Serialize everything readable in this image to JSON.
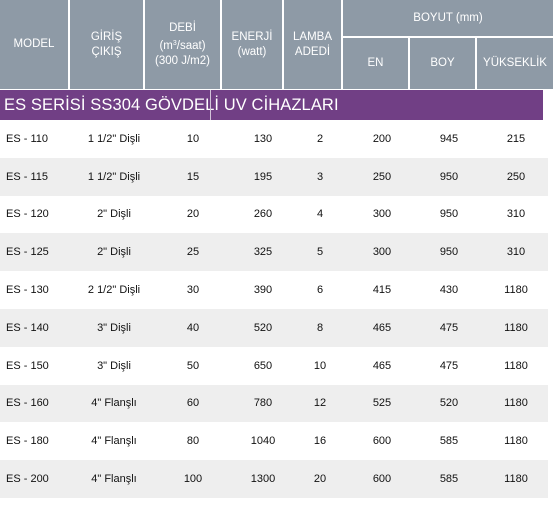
{
  "header": {
    "model": "MODEL",
    "giris_line1": "GİRİŞ",
    "giris_line2": "ÇIKIŞ",
    "debi_line1": "DEBİ",
    "debi_line2_pre": "(m",
    "debi_line2_sup": "3",
    "debi_line2_post": "/saat)",
    "debi_line3": "(300 J/m2)",
    "enerji_line1": "ENERJİ",
    "enerji_line2": "(watt)",
    "lamba_line1": "LAMBA",
    "lamba_line2": "ADEDİ",
    "boyut": "BOYUT (mm)",
    "en": "EN",
    "boy": "BOY",
    "yukseklik": "YÜKSEKLİK"
  },
  "section_title": "ES SERİSİ SS304 GÖVDELİ UV CİHAZLARI",
  "rows": [
    {
      "model": "ES - 110",
      "giris": "1 1/2\" Dişli",
      "debi": "10",
      "enerji": "130",
      "lamba": "2",
      "en": "200",
      "boy": "945",
      "yukseklik": "215"
    },
    {
      "model": "ES - 115",
      "giris": "1 1/2\" Dişli",
      "debi": "15",
      "enerji": "195",
      "lamba": "3",
      "en": "250",
      "boy": "950",
      "yukseklik": "250"
    },
    {
      "model": "ES - 120",
      "giris": "2\" Dişli",
      "debi": "20",
      "enerji": "260",
      "lamba": "4",
      "en": "300",
      "boy": "950",
      "yukseklik": "310"
    },
    {
      "model": "ES - 125",
      "giris": "2\" Dişli",
      "debi": "25",
      "enerji": "325",
      "lamba": "5",
      "en": "300",
      "boy": "950",
      "yukseklik": "310"
    },
    {
      "model": "ES - 130",
      "giris": "2 1/2\" Dişli",
      "debi": "30",
      "enerji": "390",
      "lamba": "6",
      "en": "415",
      "boy": "430",
      "yukseklik": "1180"
    },
    {
      "model": "ES - 140",
      "giris": "3\" Dişli",
      "debi": "40",
      "enerji": "520",
      "lamba": "8",
      "en": "465",
      "boy": "475",
      "yukseklik": "1180"
    },
    {
      "model": "ES - 150",
      "giris": "3\" Dişli",
      "debi": "50",
      "enerji": "650",
      "lamba": "10",
      "en": "465",
      "boy": "475",
      "yukseklik": "1180"
    },
    {
      "model": "ES - 160",
      "giris": "4\" Flanşlı",
      "debi": "60",
      "enerji": "780",
      "lamba": "12",
      "en": "525",
      "boy": "520",
      "yukseklik": "1180"
    },
    {
      "model": "ES - 180",
      "giris": "4\" Flanşlı",
      "debi": "80",
      "enerji": "1040",
      "lamba": "16",
      "en": "600",
      "boy": "585",
      "yukseklik": "1180"
    },
    {
      "model": "ES - 200",
      "giris": "4\" Flanşlı",
      "debi": "100",
      "enerji": "1300",
      "lamba": "20",
      "en": "600",
      "boy": "585",
      "yukseklik": "1180"
    }
  ]
}
